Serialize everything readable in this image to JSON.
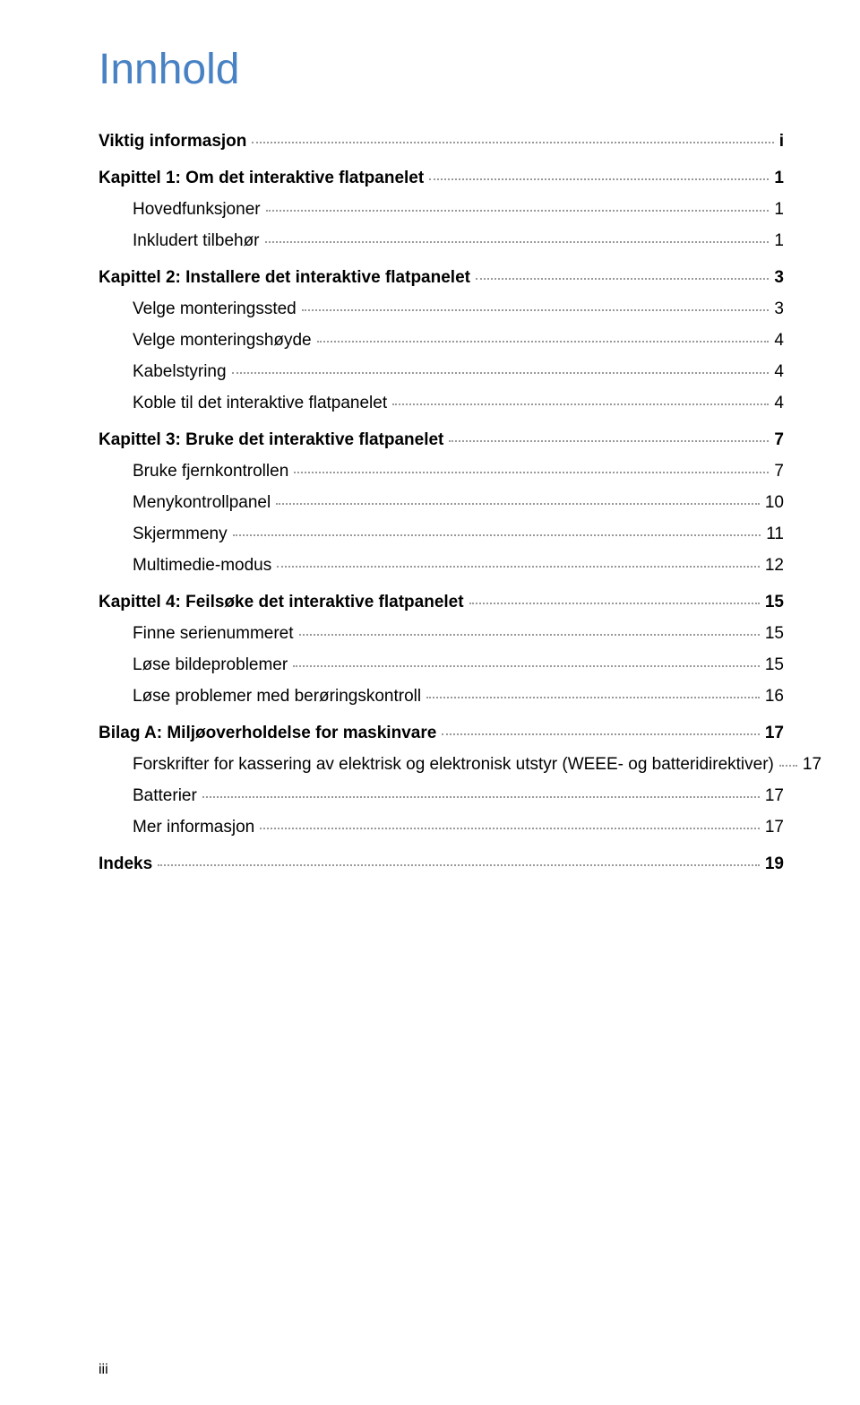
{
  "title": "Innhold",
  "footer_page": "iii",
  "colors": {
    "title_color": "#4882c4",
    "text_color": "#000000",
    "background_color": "#ffffff",
    "dots_color": "#999999"
  },
  "typography": {
    "title_fontsize": 48,
    "entry_fontsize": 19,
    "title_fontweight": "normal",
    "bold_fontweight": "bold"
  },
  "entries": [
    {
      "label": "Viktig informasjon",
      "page": "i",
      "level": 0
    },
    {
      "label": "Kapittel 1: Om det interaktive flatpanelet",
      "page": "1",
      "level": 0
    },
    {
      "label": "Hovedfunksjoner",
      "page": "1",
      "level": 1
    },
    {
      "label": "Inkludert tilbehør",
      "page": "1",
      "level": 1
    },
    {
      "label": "Kapittel 2: Installere det interaktive flatpanelet",
      "page": "3",
      "level": 0
    },
    {
      "label": "Velge monteringssted",
      "page": "3",
      "level": 1
    },
    {
      "label": "Velge monteringshøyde",
      "page": "4",
      "level": 1
    },
    {
      "label": "Kabelstyring",
      "page": "4",
      "level": 1
    },
    {
      "label": "Koble til det interaktive flatpanelet",
      "page": "4",
      "level": 1
    },
    {
      "label": "Kapittel 3: Bruke det interaktive flatpanelet",
      "page": "7",
      "level": 0
    },
    {
      "label": "Bruke fjernkontrollen",
      "page": "7",
      "level": 1
    },
    {
      "label": "Menykontrollpanel",
      "page": "10",
      "level": 1
    },
    {
      "label": "Skjermmeny",
      "page": "11",
      "level": 1
    },
    {
      "label": "Multimedie-modus",
      "page": "12",
      "level": 1
    },
    {
      "label": "Kapittel 4: Feilsøke det interaktive flatpanelet",
      "page": "15",
      "level": 0
    },
    {
      "label": "Finne serienummeret",
      "page": "15",
      "level": 1
    },
    {
      "label": "Løse bildeproblemer",
      "page": "15",
      "level": 1
    },
    {
      "label": "Løse problemer med berøringskontroll",
      "page": "16",
      "level": 1
    },
    {
      "label": "Bilag A: Miljøoverholdelse for maskinvare",
      "page": "17",
      "level": 0
    },
    {
      "label": "Forskrifter for kassering av elektrisk og elektronisk utstyr (WEEE- og batteridirektiver)",
      "page": "17",
      "level": 1
    },
    {
      "label": "Batterier",
      "page": "17",
      "level": 1
    },
    {
      "label": "Mer informasjon",
      "page": "17",
      "level": 1
    },
    {
      "label": "Indeks",
      "page": "19",
      "level": 0
    }
  ]
}
